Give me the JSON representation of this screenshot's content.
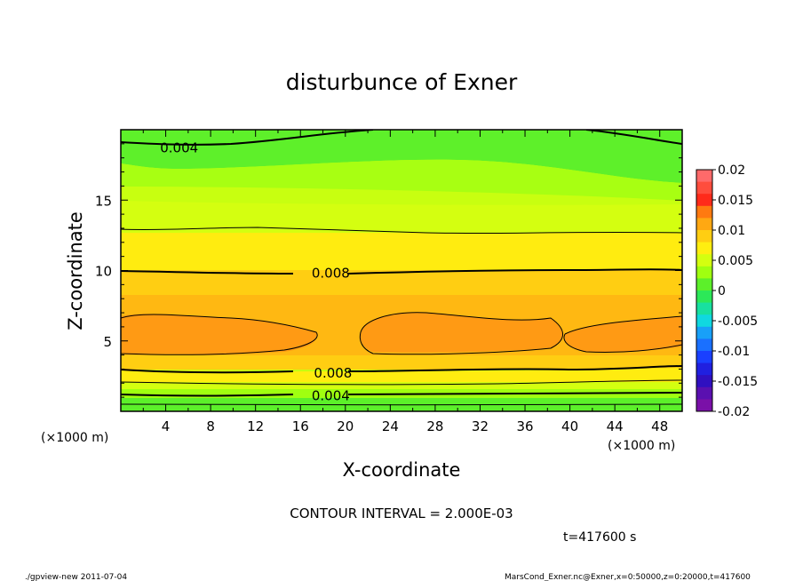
{
  "chart_data": {
    "type": "heatmap",
    "title": "disturbunce of Exner",
    "xlabel": "X-coordinate",
    "ylabel": "Z-coordinate",
    "x_unit": "(×1000 m)",
    "y_unit": "(×1000 m)",
    "x_range": [
      0,
      50
    ],
    "y_range": [
      0,
      20
    ],
    "x_ticks": [
      "4",
      "8",
      "12",
      "16",
      "20",
      "24",
      "28",
      "32",
      "36",
      "40",
      "44",
      "48"
    ],
    "y_ticks": [
      "5",
      "10",
      "15"
    ],
    "contour_interval_text": "CONTOUR INTERVAL = 2.000E-03",
    "time_text": "t=417600 s",
    "contour_labels": [
      {
        "text": "0.004",
        "x": 3.5,
        "z": 18.7
      },
      {
        "text": "0.008",
        "x": 17.0,
        "z": 9.8
      },
      {
        "text": "0.008",
        "x": 17.2,
        "z": 2.7
      },
      {
        "text": "0.004",
        "x": 17.0,
        "z": 1.1
      }
    ],
    "colorbar": {
      "ticks": [
        "0.02",
        "0.015",
        "0.01",
        "0.005",
        "0",
        "-0.005",
        "-0.01",
        "-0.015",
        "-0.02"
      ],
      "colors": [
        "#ff6a6a",
        "#ff4d3d",
        "#ff2a1a",
        "#ff7a10",
        "#ffa812",
        "#ffce12",
        "#ffee10",
        "#d4ff10",
        "#a0ff10",
        "#5cf02a",
        "#2ce858",
        "#18e0a0",
        "#10d8e0",
        "#18a0f8",
        "#1a70ff",
        "#1a40ff",
        "#2020e0",
        "#3010c0",
        "#5a10b0",
        "#7a10a8"
      ]
    },
    "footer_left": "./gpview-new  2011-07-04",
    "footer_right": "MarsCond_Exner.nc@Exner,x=0:50000,z=0:20000,t=417600"
  }
}
